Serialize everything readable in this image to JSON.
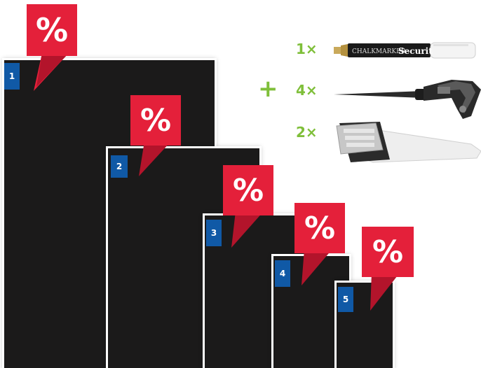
{
  "colors": {
    "board": "#1b1a1a",
    "badge": "#1059a6",
    "discount": "#e4203a",
    "quantity": "#7fbf3a"
  },
  "boards": [
    {
      "number": "1",
      "discount_symbol": "%"
    },
    {
      "number": "2",
      "discount_symbol": "%"
    },
    {
      "number": "3",
      "discount_symbol": "%"
    },
    {
      "number": "4",
      "discount_symbol": "%"
    },
    {
      "number": "5",
      "discount_symbol": "%"
    }
  ],
  "accessories": {
    "plus_symbol": "+",
    "items": [
      {
        "quantity": "1×",
        "icon": "chalk-marker-icon",
        "marker_brand": "Securit",
        "marker_text": "CHALKMARKER"
      },
      {
        "quantity": "4×",
        "icon": "ground-spike-icon"
      },
      {
        "quantity": "2×",
        "icon": "wall-hook-icon"
      }
    ]
  }
}
